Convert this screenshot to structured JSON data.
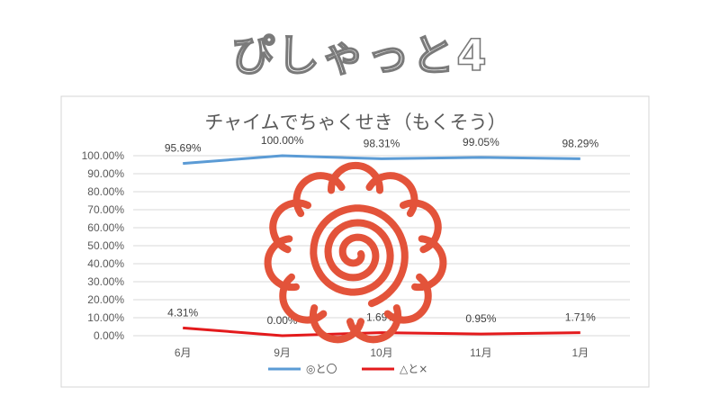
{
  "slide": {
    "title": "ぴしゃっと4"
  },
  "chart_data": {
    "type": "line",
    "title": "チャイムでちゃくせき（もくそう）",
    "categories": [
      "6月",
      "9月",
      "10月",
      "11月",
      "1月"
    ],
    "ylim": [
      0,
      100
    ],
    "y_ticks": [
      "0.00%",
      "10.00%",
      "20.00%",
      "30.00%",
      "40.00%",
      "50.00%",
      "60.00%",
      "70.00%",
      "80.00%",
      "90.00%",
      "100.00%"
    ],
    "grid": true,
    "legend_position": "bottom",
    "series": [
      {
        "name": "◎と〇",
        "color": "#5b9bd5",
        "values": [
          95.69,
          100.0,
          98.31,
          99.05,
          98.29
        ],
        "labels": [
          "95.69%",
          "100.00%",
          "98.31%",
          "99.05%",
          "98.29%"
        ]
      },
      {
        "name": "△と×",
        "color": "#e31a1c",
        "values": [
          4.31,
          0.0,
          1.69,
          0.95,
          1.71
        ],
        "labels": [
          "4.31%",
          "0.00%",
          "1.69%",
          "0.95%",
          "1.71%"
        ]
      }
    ]
  },
  "overlay": {
    "icon": "red-spiral-flower-stamp",
    "color": "#e3533a"
  }
}
